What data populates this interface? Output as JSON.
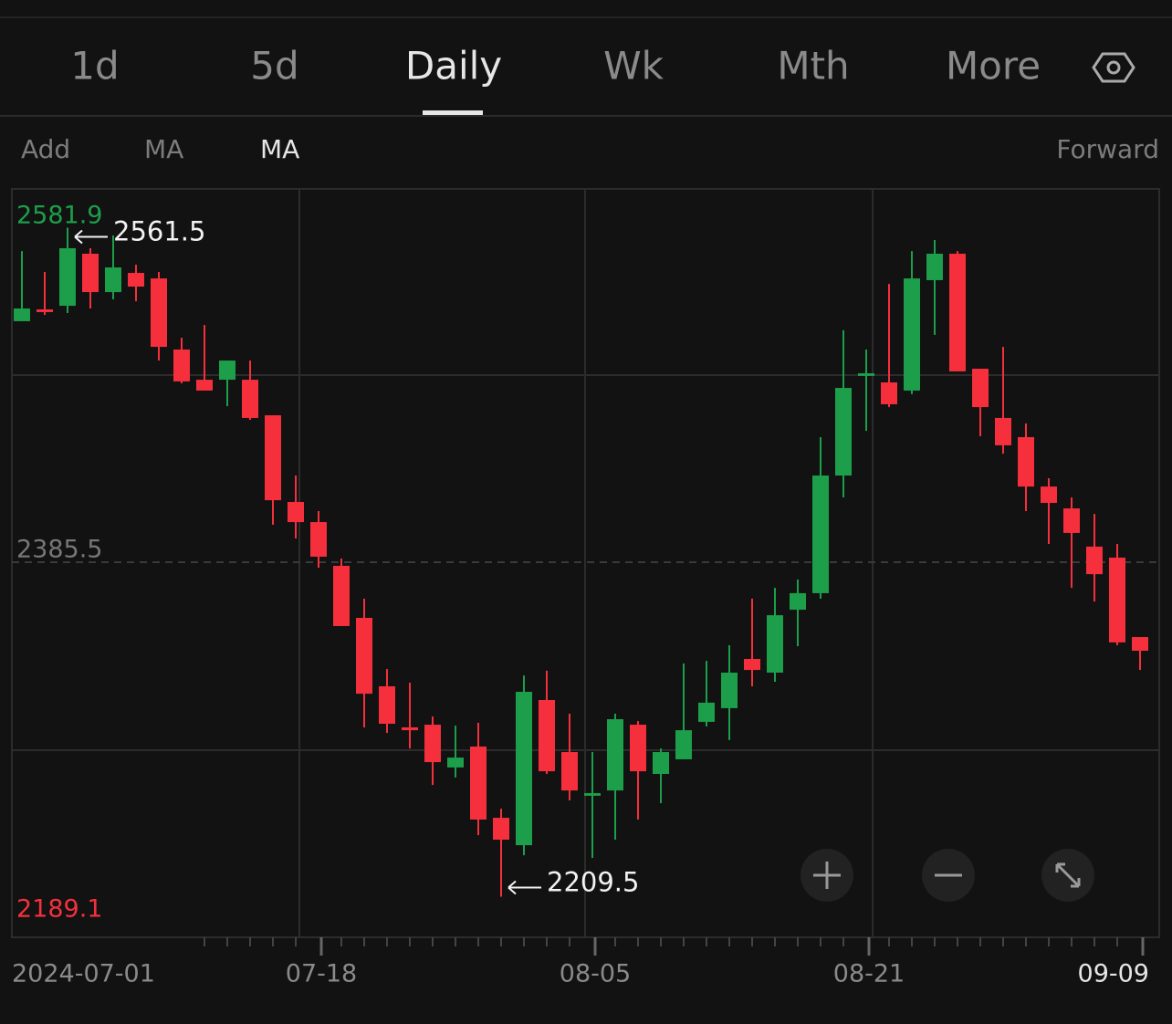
{
  "tabs": [
    "1d",
    "5d",
    "Daily",
    "Wk",
    "Mth",
    "More"
  ],
  "toolbar": {
    "left": [
      "Add",
      "MA",
      "MA"
    ],
    "right": "Forward"
  },
  "chart_data": {
    "type": "candlestick",
    "categories": [
      "2024-07-01",
      null,
      null,
      null,
      null,
      null,
      null,
      null,
      null,
      null,
      null,
      null,
      null,
      "07-18",
      null,
      null,
      null,
      null,
      null,
      null,
      null,
      null,
      null,
      null,
      null,
      "08-05",
      null,
      null,
      null,
      null,
      null,
      null,
      null,
      null,
      null,
      null,
      null,
      "08-21",
      null,
      null,
      null,
      null,
      null,
      null,
      null,
      null,
      null,
      null,
      null,
      "09-09"
    ],
    "open": [
      2512.3,
      2518.5,
      2520.4,
      2547.8,
      2527.6,
      2537.7,
      2534.8,
      2497.4,
      2481.5,
      2481.5,
      2481.5,
      2462.8,
      2417.2,
      2406.6,
      2383.6,
      2356.2,
      2320.2,
      2298.6,
      2300.0,
      2277.5,
      2288.5,
      2251.0,
      2236.6,
      2313.0,
      2285.6,
      2262.6,
      2265.4,
      2300.0,
      2274.1,
      2281.8,
      2301.5,
      2308.7,
      2334.6,
      2327.4,
      2360.5,
      2369.2,
      2431.1,
      2483.5,
      2480.1,
      2475.8,
      2533.9,
      2547.8,
      2487.3,
      2461.4,
      2451.3,
      2425.3,
      2413.8,
      2393.7,
      2387.9,
      2346.1
    ],
    "high": [
      2549.2,
      2538.2,
      2561.5,
      2550.7,
      2557.4,
      2542.0,
      2538.2,
      2503.6,
      2510.3,
      2491.6,
      2491.6,
      2462.8,
      2431.1,
      2412.4,
      2387.4,
      2366.3,
      2329.3,
      2322.1,
      2304.3,
      2299.5,
      2301.0,
      2255.8,
      2325.9,
      2328.4,
      2305.8,
      2285.6,
      2305.8,
      2301.9,
      2287.5,
      2332.2,
      2333.6,
      2341.8,
      2366.3,
      2372.0,
      2376.4,
      2451.3,
      2507.5,
      2497.4,
      2531.9,
      2549.2,
      2555.0,
      2549.2,
      2487.3,
      2498.8,
      2458.5,
      2429.7,
      2419.6,
      2410.9,
      2395.1,
      2346.1
    ],
    "low": [
      2512.3,
      2515.6,
      2516.6,
      2519.0,
      2523.8,
      2522.8,
      2491.6,
      2479.6,
      2475.8,
      2467.6,
      2460.4,
      2405.2,
      2398.0,
      2382.6,
      2351.9,
      2298.6,
      2295.7,
      2287.5,
      2268.3,
      2272.2,
      2241.9,
      2209.5,
      2231.3,
      2274.1,
      2260.2,
      2229.9,
      2239.5,
      2250.1,
      2258.7,
      2281.8,
      2299.1,
      2291.9,
      2320.2,
      2322.6,
      2341.3,
      2366.3,
      2419.6,
      2454.6,
      2467.1,
      2473.9,
      2505.1,
      2485.9,
      2451.8,
      2442.6,
      2412.4,
      2395.1,
      2372.0,
      2364.8,
      2341.8,
      2328.8
    ],
    "close": [
      2519.0,
      2517.1,
      2550.7,
      2527.6,
      2540.6,
      2530.5,
      2498.8,
      2480.6,
      2475.8,
      2491.6,
      2461.4,
      2418.1,
      2406.6,
      2388.4,
      2351.9,
      2316.3,
      2300.5,
      2297.1,
      2280.3,
      2282.7,
      2250.1,
      2239.5,
      2317.3,
      2275.5,
      2265.4,
      2264.0,
      2302.9,
      2275.5,
      2285.6,
      2297.1,
      2311.6,
      2327.4,
      2328.8,
      2357.6,
      2369.2,
      2431.1,
      2477.2,
      2484.9,
      2468.6,
      2534.8,
      2547.8,
      2485.9,
      2467.1,
      2447.0,
      2425.3,
      2416.7,
      2400.9,
      2379.2,
      2343.3,
      2338.9
    ],
    "up_color": "#1c9e4a",
    "down_color": "#f5303c",
    "ylim": [
      2189.1,
      2581.9
    ],
    "yticks": [
      2189.1,
      2385.5,
      2581.9
    ],
    "annotations": [
      2561.5,
      2209.5
    ]
  }
}
